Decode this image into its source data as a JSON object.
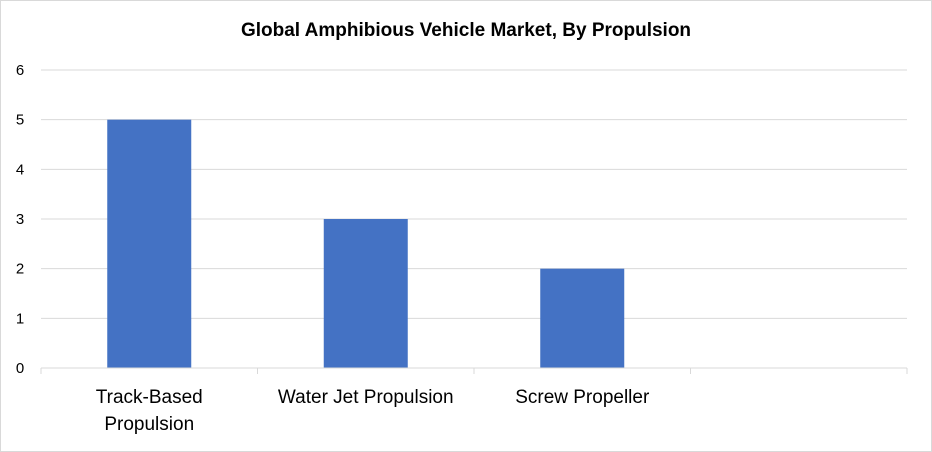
{
  "chart_data": {
    "type": "bar",
    "title": "Global Amphibious Vehicle Market, By Propulsion",
    "categories": [
      "Track-Based Propulsion",
      "Water Jet Propulsion",
      "Screw Propeller",
      ""
    ],
    "category_label_lines": [
      [
        "Track-Based",
        "Propulsion"
      ],
      [
        "Water Jet Propulsion"
      ],
      [
        "Screw Propeller"
      ],
      []
    ],
    "values": [
      5,
      3,
      2,
      null
    ],
    "ylim": [
      0,
      6
    ],
    "yticks": [
      0,
      1,
      2,
      3,
      4,
      5,
      6
    ],
    "xlabel": "",
    "ylabel": "",
    "grid": true,
    "legend": "none",
    "bar_color": "#4472c4",
    "grid_color": "#d9d9d9"
  }
}
